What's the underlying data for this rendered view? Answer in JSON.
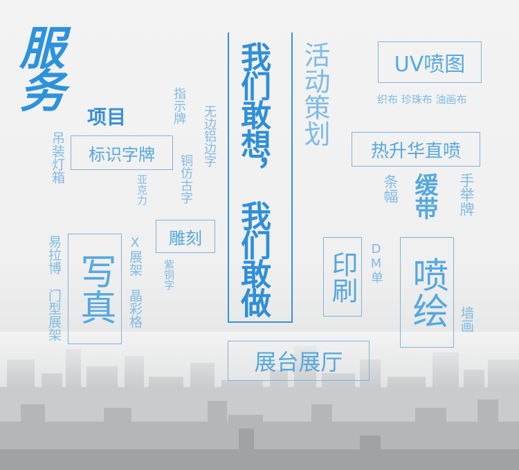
{
  "title": {
    "fuwu": "服务",
    "xiangmu": "项目"
  },
  "slogan": {
    "line1": "我们敢想，",
    "line2": "我们敢做"
  },
  "items": {
    "huodong": "活动策划",
    "uv": "UV喷图",
    "uv_sub": "织布 珍珠布 油画布",
    "rexsh": "热升华直喷",
    "tiaofu": "条幅",
    "huandai": "缓带",
    "shoujupai": "手举牌",
    "yinshua": "印刷",
    "dm": "DM单",
    "penhui": "喷绘",
    "qianghua": "墙画",
    "zhanting": "展台展厅",
    "diaoke": "雕刻",
    "zitong": "紫铜字",
    "zhishipai": "指示牌",
    "wubian": "无边铝边字",
    "tongfang": "铜仿古字",
    "yakeli": "亚克力",
    "biaoshi": "标识字牌",
    "diaozhuang": "吊装灯箱",
    "yilabo": "易拉博",
    "menxing": "门型展架",
    "xiezhen": "写真",
    "xzhanjia": "X展架",
    "jingcaige": "晶彩格"
  },
  "colors": {
    "accent": "#55a8df",
    "light": "#7fbbe6",
    "bar": "#3a8fd6",
    "border": "#7fb3dc"
  }
}
